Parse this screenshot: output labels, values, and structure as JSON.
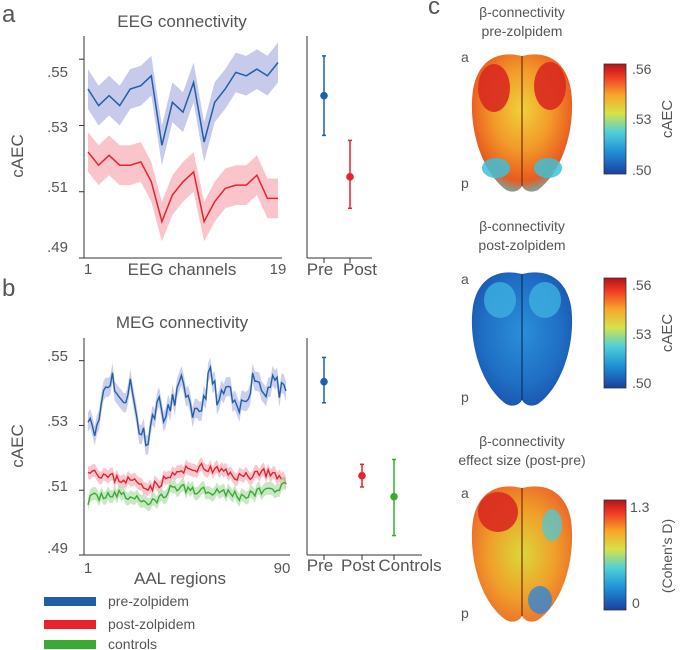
{
  "panel_labels": {
    "a": "a",
    "b": "b",
    "c": "c"
  },
  "colors": {
    "pre": "#1f5fa8",
    "post": "#e8232e",
    "controls": "#3aaa35",
    "pre_band": "#b9bde6",
    "post_band": "#f7b5bd",
    "controls_band": "#b5e0b0"
  },
  "legend": [
    {
      "label": "pre-zolpidem",
      "color": "#1f5fa8"
    },
    {
      "label": "post-zolpidem",
      "color": "#e8232e"
    },
    {
      "label": "controls",
      "color": "#3aaa35"
    }
  ],
  "chart_data": [
    {
      "id": "eeg-line",
      "type": "line",
      "title": "EEG connectivity",
      "xlabel": "EEG channels",
      "ylabel": "cAEC",
      "xlim": [
        1,
        19
      ],
      "ylim": [
        0.49,
        0.557
      ],
      "x_ticks": [
        "1",
        "19"
      ],
      "y_ticks": [
        ".49",
        ".51",
        ".53",
        ".55"
      ],
      "y_tick_values": [
        0.49,
        0.51,
        0.53,
        0.55
      ],
      "x": [
        1,
        2,
        3,
        4,
        5,
        6,
        7,
        8,
        9,
        10,
        11,
        12,
        13,
        14,
        15,
        16,
        17,
        18,
        19
      ],
      "series": [
        {
          "name": "pre-zolpidem",
          "color": "#1f5fa8",
          "values": [
            0.541,
            0.536,
            0.539,
            0.536,
            0.541,
            0.542,
            0.545,
            0.524,
            0.537,
            0.534,
            0.543,
            0.525,
            0.537,
            0.541,
            0.546,
            0.545,
            0.547,
            0.545,
            0.549
          ],
          "band": 0.006
        },
        {
          "name": "post-zolpidem",
          "color": "#e8232e",
          "values": [
            0.522,
            0.518,
            0.521,
            0.518,
            0.518,
            0.519,
            0.513,
            0.501,
            0.509,
            0.513,
            0.516,
            0.501,
            0.507,
            0.511,
            0.512,
            0.512,
            0.515,
            0.508,
            0.508
          ],
          "band": 0.006
        }
      ]
    },
    {
      "id": "eeg-mean",
      "type": "scatter",
      "categories": [
        "Pre",
        "Post"
      ],
      "ylim": [
        0.49,
        0.557
      ],
      "series": [
        {
          "name": "Pre",
          "color": "#1f5fa8",
          "mean": 0.539,
          "lower": 0.527,
          "upper": 0.551
        },
        {
          "name": "Post",
          "color": "#e8232e",
          "mean": 0.5145,
          "lower": 0.505,
          "upper": 0.5255
        }
      ]
    },
    {
      "id": "meg-line",
      "type": "line",
      "title": "MEG connectivity",
      "xlabel": "AAL regions",
      "ylabel": "cAEC",
      "xlim": [
        1,
        90
      ],
      "ylim": [
        0.49,
        0.557
      ],
      "x_ticks": [
        "1",
        "90"
      ],
      "y_ticks": [
        ".49",
        ".51",
        ".53",
        ".55"
      ],
      "y_tick_values": [
        0.49,
        0.51,
        0.53,
        0.55
      ],
      "x_count": 90,
      "series": [
        {
          "name": "pre-zolpidem",
          "color": "#1f5fa8",
          "base": 0.539,
          "amp": 0.006,
          "seed": 11,
          "band": 0.003,
          "anchors": [
            [
              1,
              0.534
            ],
            [
              5,
              0.528
            ],
            [
              8,
              0.541
            ],
            [
              12,
              0.545
            ],
            [
              16,
              0.536
            ],
            [
              20,
              0.543
            ],
            [
              24,
              0.529
            ],
            [
              28,
              0.526
            ],
            [
              32,
              0.538
            ],
            [
              36,
              0.532
            ],
            [
              40,
              0.539
            ],
            [
              44,
              0.544
            ],
            [
              48,
              0.531
            ],
            [
              52,
              0.536
            ],
            [
              56,
              0.546
            ],
            [
              60,
              0.537
            ],
            [
              64,
              0.542
            ],
            [
              68,
              0.533
            ],
            [
              72,
              0.539
            ],
            [
              76,
              0.546
            ],
            [
              80,
              0.54
            ],
            [
              84,
              0.545
            ],
            [
              87,
              0.541
            ],
            [
              90,
              0.539
            ]
          ]
        },
        {
          "name": "post-zolpidem",
          "color": "#e8232e",
          "base": 0.514,
          "amp": 0.003,
          "seed": 23,
          "band": 0.002,
          "anchors": [
            [
              1,
              0.517
            ],
            [
              10,
              0.514
            ],
            [
              20,
              0.513
            ],
            [
              30,
              0.511
            ],
            [
              40,
              0.515
            ],
            [
              50,
              0.517
            ],
            [
              60,
              0.516
            ],
            [
              70,
              0.514
            ],
            [
              80,
              0.516
            ],
            [
              90,
              0.512
            ]
          ]
        },
        {
          "name": "controls",
          "color": "#3aaa35",
          "base": 0.509,
          "amp": 0.003,
          "seed": 37,
          "band": 0.002,
          "anchors": [
            [
              1,
              0.507
            ],
            [
              10,
              0.509
            ],
            [
              20,
              0.508
            ],
            [
              30,
              0.506
            ],
            [
              40,
              0.511
            ],
            [
              50,
              0.51
            ],
            [
              60,
              0.51
            ],
            [
              70,
              0.508
            ],
            [
              80,
              0.51
            ],
            [
              90,
              0.511
            ]
          ]
        }
      ]
    },
    {
      "id": "meg-mean",
      "type": "scatter",
      "categories": [
        "Pre",
        "Post",
        "Controls"
      ],
      "ylim": [
        0.49,
        0.557
      ],
      "series": [
        {
          "name": "Pre",
          "color": "#1f5fa8",
          "mean": 0.5435,
          "lower": 0.537,
          "upper": 0.551
        },
        {
          "name": "Post",
          "color": "#e8232e",
          "mean": 0.5145,
          "lower": 0.511,
          "upper": 0.518
        },
        {
          "name": "Controls",
          "color": "#3aaa35",
          "mean": 0.508,
          "lower": 0.496,
          "upper": 0.5195
        }
      ]
    }
  ],
  "brain_maps": [
    {
      "id": "pre",
      "title_lines": [
        "β-connectivity",
        "pre-zolpidem"
      ],
      "orient_top": "a",
      "orient_bottom": "p",
      "colorbar": {
        "ticks": [
          ".56",
          ".53",
          ".50"
        ],
        "label": "cAEC"
      }
    },
    {
      "id": "post",
      "title_lines": [
        "β-connectivity",
        "post-zolpidem"
      ],
      "orient_top": "a",
      "orient_bottom": "p",
      "colorbar": {
        "ticks": [
          ".56",
          ".53",
          ".50"
        ],
        "label": "cAEC"
      }
    },
    {
      "id": "effect",
      "title_lines": [
        "β-connectivity",
        "effect size (post-pre)"
      ],
      "orient_top": "a",
      "orient_bottom": "p",
      "colorbar": {
        "ticks": [
          "1.3",
          "0"
        ],
        "label": "(Cohen's D)"
      }
    }
  ]
}
